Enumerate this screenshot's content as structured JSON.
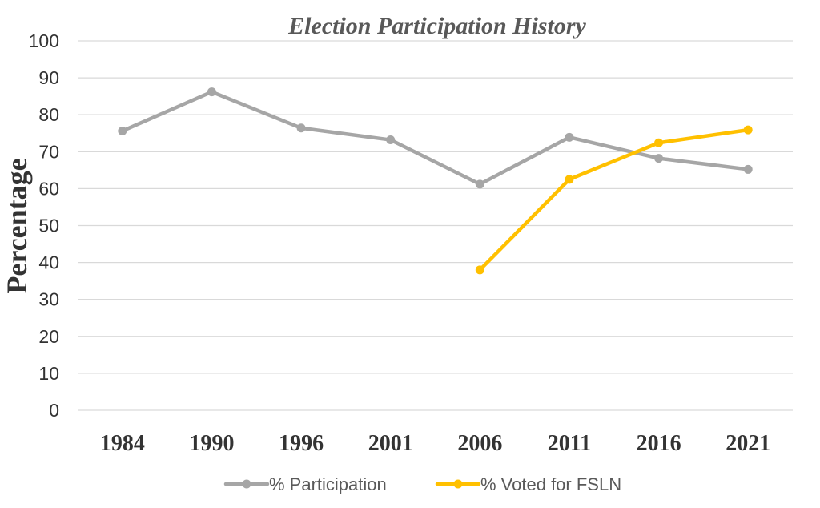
{
  "chart_data": {
    "type": "line",
    "title": "Election Participation History",
    "xlabel": "",
    "ylabel": "Percentage",
    "categories": [
      "1984",
      "1990",
      "1996",
      "2001",
      "2006",
      "2011",
      "2016",
      "2021"
    ],
    "ylim": [
      0,
      100
    ],
    "yticks": [
      0,
      10,
      20,
      30,
      40,
      50,
      60,
      70,
      80,
      90,
      100
    ],
    "grid": true,
    "legend_position": "bottom",
    "series": [
      {
        "name": "% Participation",
        "color": "#a6a6a6",
        "values": [
          75.6,
          86.2,
          76.4,
          73.2,
          61.2,
          73.9,
          68.2,
          65.2
        ]
      },
      {
        "name": "% Voted for FSLN",
        "color": "#ffc000",
        "values": [
          null,
          null,
          null,
          null,
          38.0,
          62.5,
          72.4,
          75.9
        ]
      }
    ]
  }
}
